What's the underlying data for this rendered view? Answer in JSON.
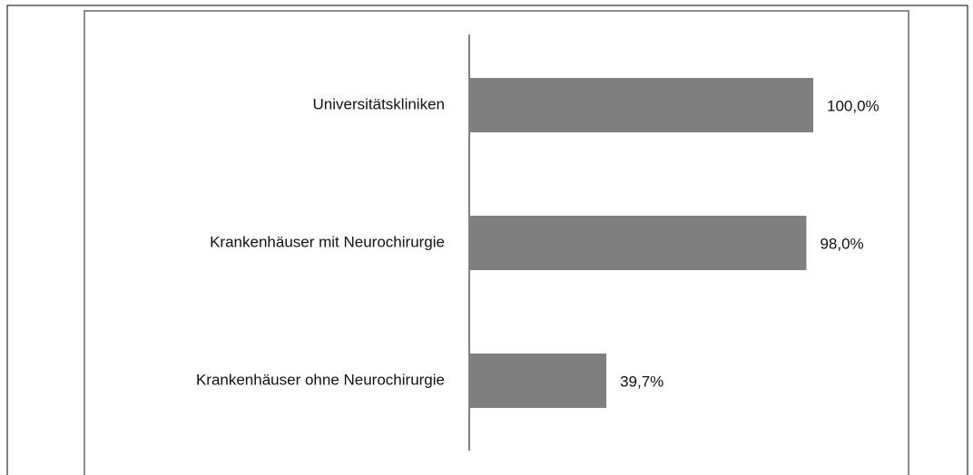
{
  "chart_data": {
    "type": "bar",
    "orientation": "horizontal",
    "categories": [
      "Universitätskliniken",
      "Krankenhäuser mit Neurochirurgie",
      "Krankenhäuser ohne Neurochirurgie"
    ],
    "values": [
      100,
      98,
      39.7
    ],
    "value_labels": [
      "100,0%",
      "98,0%",
      "39,7%"
    ],
    "color": "#7f7f7f"
  }
}
